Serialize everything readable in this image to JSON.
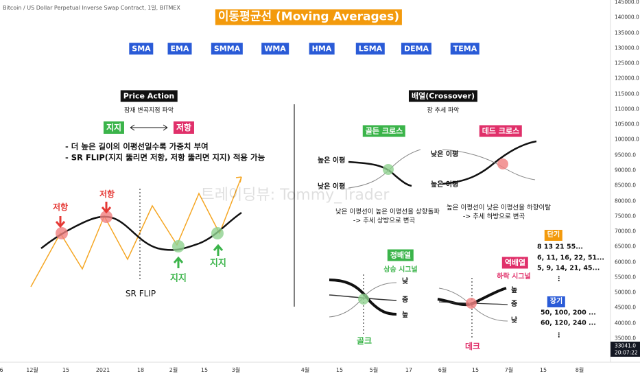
{
  "header": {
    "symbol": "Bitcoin / US Dollar Perpetual Inverse Swap Contract, 1일, BITMEX",
    "title": "이동평균선 (Moving Averages)",
    "ma_types": [
      "SMA",
      "EMA",
      "SMMA",
      "WMA",
      "HMA",
      "LSMA",
      "DEMA",
      "TEMA"
    ]
  },
  "price_action": {
    "title": "Price Action",
    "subtitle": "잠재 변곡지점 파악",
    "support": "지지",
    "resistance": "저항",
    "notes": [
      "- 더 높은 길이의 이평선일수록 가중치 부여",
      "- SR FLIP(지지 뚫리면 저항, 저항 뚫리면 지지) 적용 가능"
    ],
    "chart_labels": [
      "저항",
      "저항",
      "지지",
      "지지",
      "SR FLIP"
    ]
  },
  "crossover": {
    "title": "배열(Crossover)",
    "subtitle": "장 추세 파악",
    "golden": {
      "label": "골든 크로스",
      "high": "높은 이평",
      "low": "낮은 이평",
      "desc": [
        "낮은 이평선이 높은 이평선을 상향돌파",
        "-> 추세 상방으로 변곡"
      ]
    },
    "dead": {
      "label": "데드 크로스",
      "low": "낮은 이평",
      "high": "높은 이평",
      "desc": [
        "높은 이평선이 낮은 이평선을 하향이탈",
        "-> 추세 하방으로 변곡"
      ]
    },
    "bullish": {
      "label": "정배열",
      "signal": "상승 시그널",
      "lines": [
        "낮",
        "중",
        "높"
      ],
      "cross": "골크"
    },
    "bearish": {
      "label": "역배열",
      "signal": "하락 시그널",
      "lines": [
        "높",
        "중",
        "낮"
      ],
      "cross": "데크"
    }
  },
  "periods": {
    "short": {
      "label": "단기",
      "values": [
        "8 13 21 55...",
        "6, 11, 16, 22, 51...",
        "5, 9, 14, 21, 45...",
        "⋮"
      ]
    },
    "long": {
      "label": "장기",
      "values": [
        "50, 100, 200 ...",
        "60, 120, 240 ...",
        "⋮"
      ]
    }
  },
  "watermark": "트레이딩뷰: Tommy_Trader",
  "price_axis": {
    "labels": [
      "145000.0",
      "140000.0",
      "135000.0",
      "130000.0",
      "125000.0",
      "120000.0",
      "115000.0",
      "110000.0",
      "105000.0",
      "100000.0",
      "95000.0",
      "90000.0",
      "85000.0",
      "80000.0",
      "75000.0",
      "70000.0",
      "65000.0",
      "60000.0",
      "55000.0",
      "50000.0",
      "45000.0",
      "40000.0",
      "35000.0"
    ],
    "last_price": "33041.0",
    "countdown": "20:07:22"
  },
  "time_axis": [
    "6",
    "12월",
    "15",
    "2021",
    "18",
    "2월",
    "15",
    "3월",
    "4월",
    "15",
    "5월",
    "17",
    "6월",
    "15",
    "7월",
    "15",
    "8월"
  ]
}
